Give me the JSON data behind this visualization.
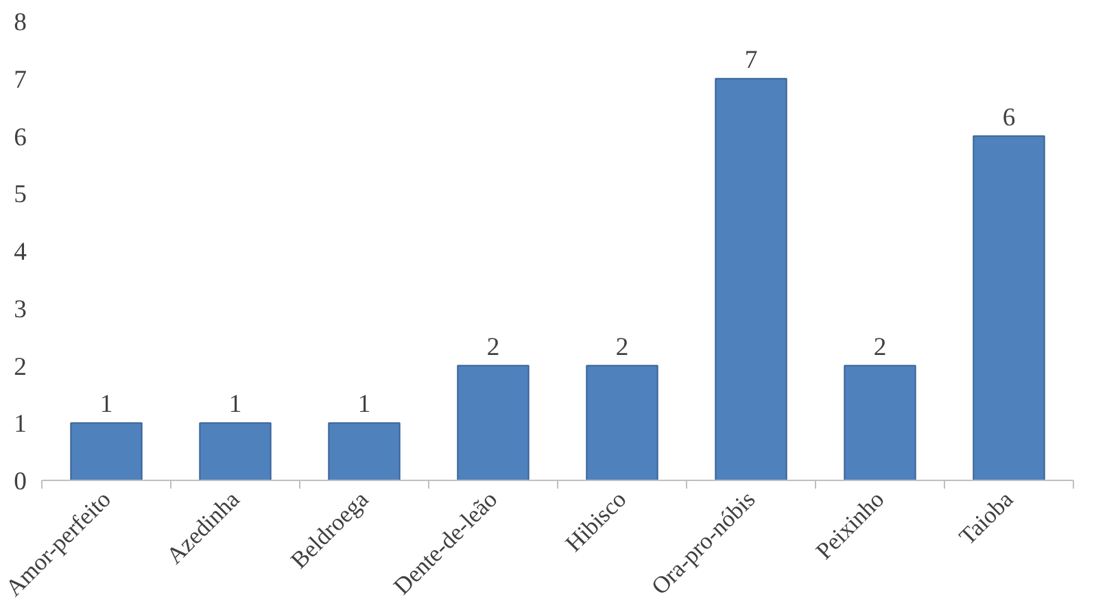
{
  "chart_data": {
    "type": "bar",
    "categories": [
      "Amor-perfeito",
      "Azedinha",
      "Beldroega",
      "Dente-de-leão",
      "Hibisco",
      "Ora-pro-nóbis",
      "Peixinho",
      "Taioba"
    ],
    "values": [
      1,
      1,
      1,
      2,
      2,
      7,
      2,
      6
    ],
    "color": "#4f81bd",
    "ylim": [
      0,
      8
    ],
    "yticks": [
      0,
      1,
      2,
      3,
      4,
      5,
      6,
      7,
      8
    ],
    "data_labels": true,
    "grid": false
  }
}
